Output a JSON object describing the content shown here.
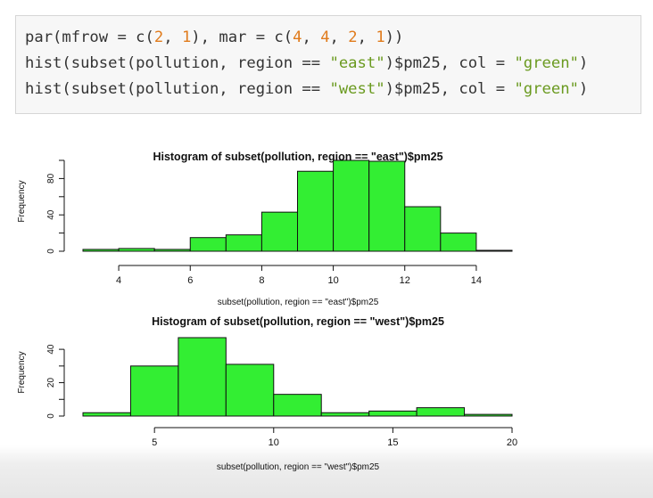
{
  "code": {
    "line1": {
      "a": "par(mfrow = c(",
      "n1": "2",
      "b": ", ",
      "n2": "1",
      "c": "), mar = c(",
      "n3": "4",
      "d": ", ",
      "n4": "4",
      "e": ", ",
      "n5": "2",
      "f": ", ",
      "n6": "1",
      "g": "))"
    },
    "line2": {
      "a": "hist(subset(pollution, region == ",
      "s1": "\"east\"",
      "b": ")$pm25, col = ",
      "s2": "\"green\"",
      "c": ")"
    },
    "line3": {
      "a": "hist(subset(pollution, region == ",
      "s1": "\"west\"",
      "b": ")$pm25, col = ",
      "s2": "\"green\"",
      "c": ")"
    }
  },
  "chart_data": [
    {
      "type": "bar",
      "subtype": "histogram",
      "title": "Histogram of subset(pollution, region == \"east\")$pm25",
      "xlabel": "subset(pollution, region == \"east\")$pm25",
      "ylabel": "Frequency",
      "bin_edges": [
        3,
        4,
        5,
        6,
        7,
        8,
        9,
        10,
        11,
        12,
        13,
        14,
        15
      ],
      "values": [
        2,
        3,
        2,
        15,
        18,
        43,
        88,
        100,
        99,
        49,
        20,
        1
      ],
      "xlim": [
        3,
        15
      ],
      "ylim": [
        0,
        100
      ],
      "xticks": [
        "4",
        "6",
        "8",
        "10",
        "12",
        "14"
      ],
      "yticks": [
        "0",
        "40",
        "80"
      ],
      "bar_color": "#33ee33",
      "grid": false,
      "legend": "none"
    },
    {
      "type": "bar",
      "subtype": "histogram",
      "title": "Histogram of subset(pollution, region == \"west\")$pm25",
      "xlabel": "subset(pollution, region == \"west\")$pm25",
      "ylabel": "Frequency",
      "bin_edges": [
        2,
        4,
        6,
        8,
        10,
        12,
        14,
        16,
        18,
        20
      ],
      "values": [
        2,
        30,
        47,
        31,
        13,
        2,
        3,
        5,
        1
      ],
      "xlim": [
        2,
        20
      ],
      "ylim": [
        0,
        47
      ],
      "xticks": [
        "5",
        "10",
        "15",
        "20"
      ],
      "yticks": [
        "0",
        "20",
        "40"
      ],
      "bar_color": "#33ee33",
      "grid": false,
      "legend": "none"
    }
  ]
}
